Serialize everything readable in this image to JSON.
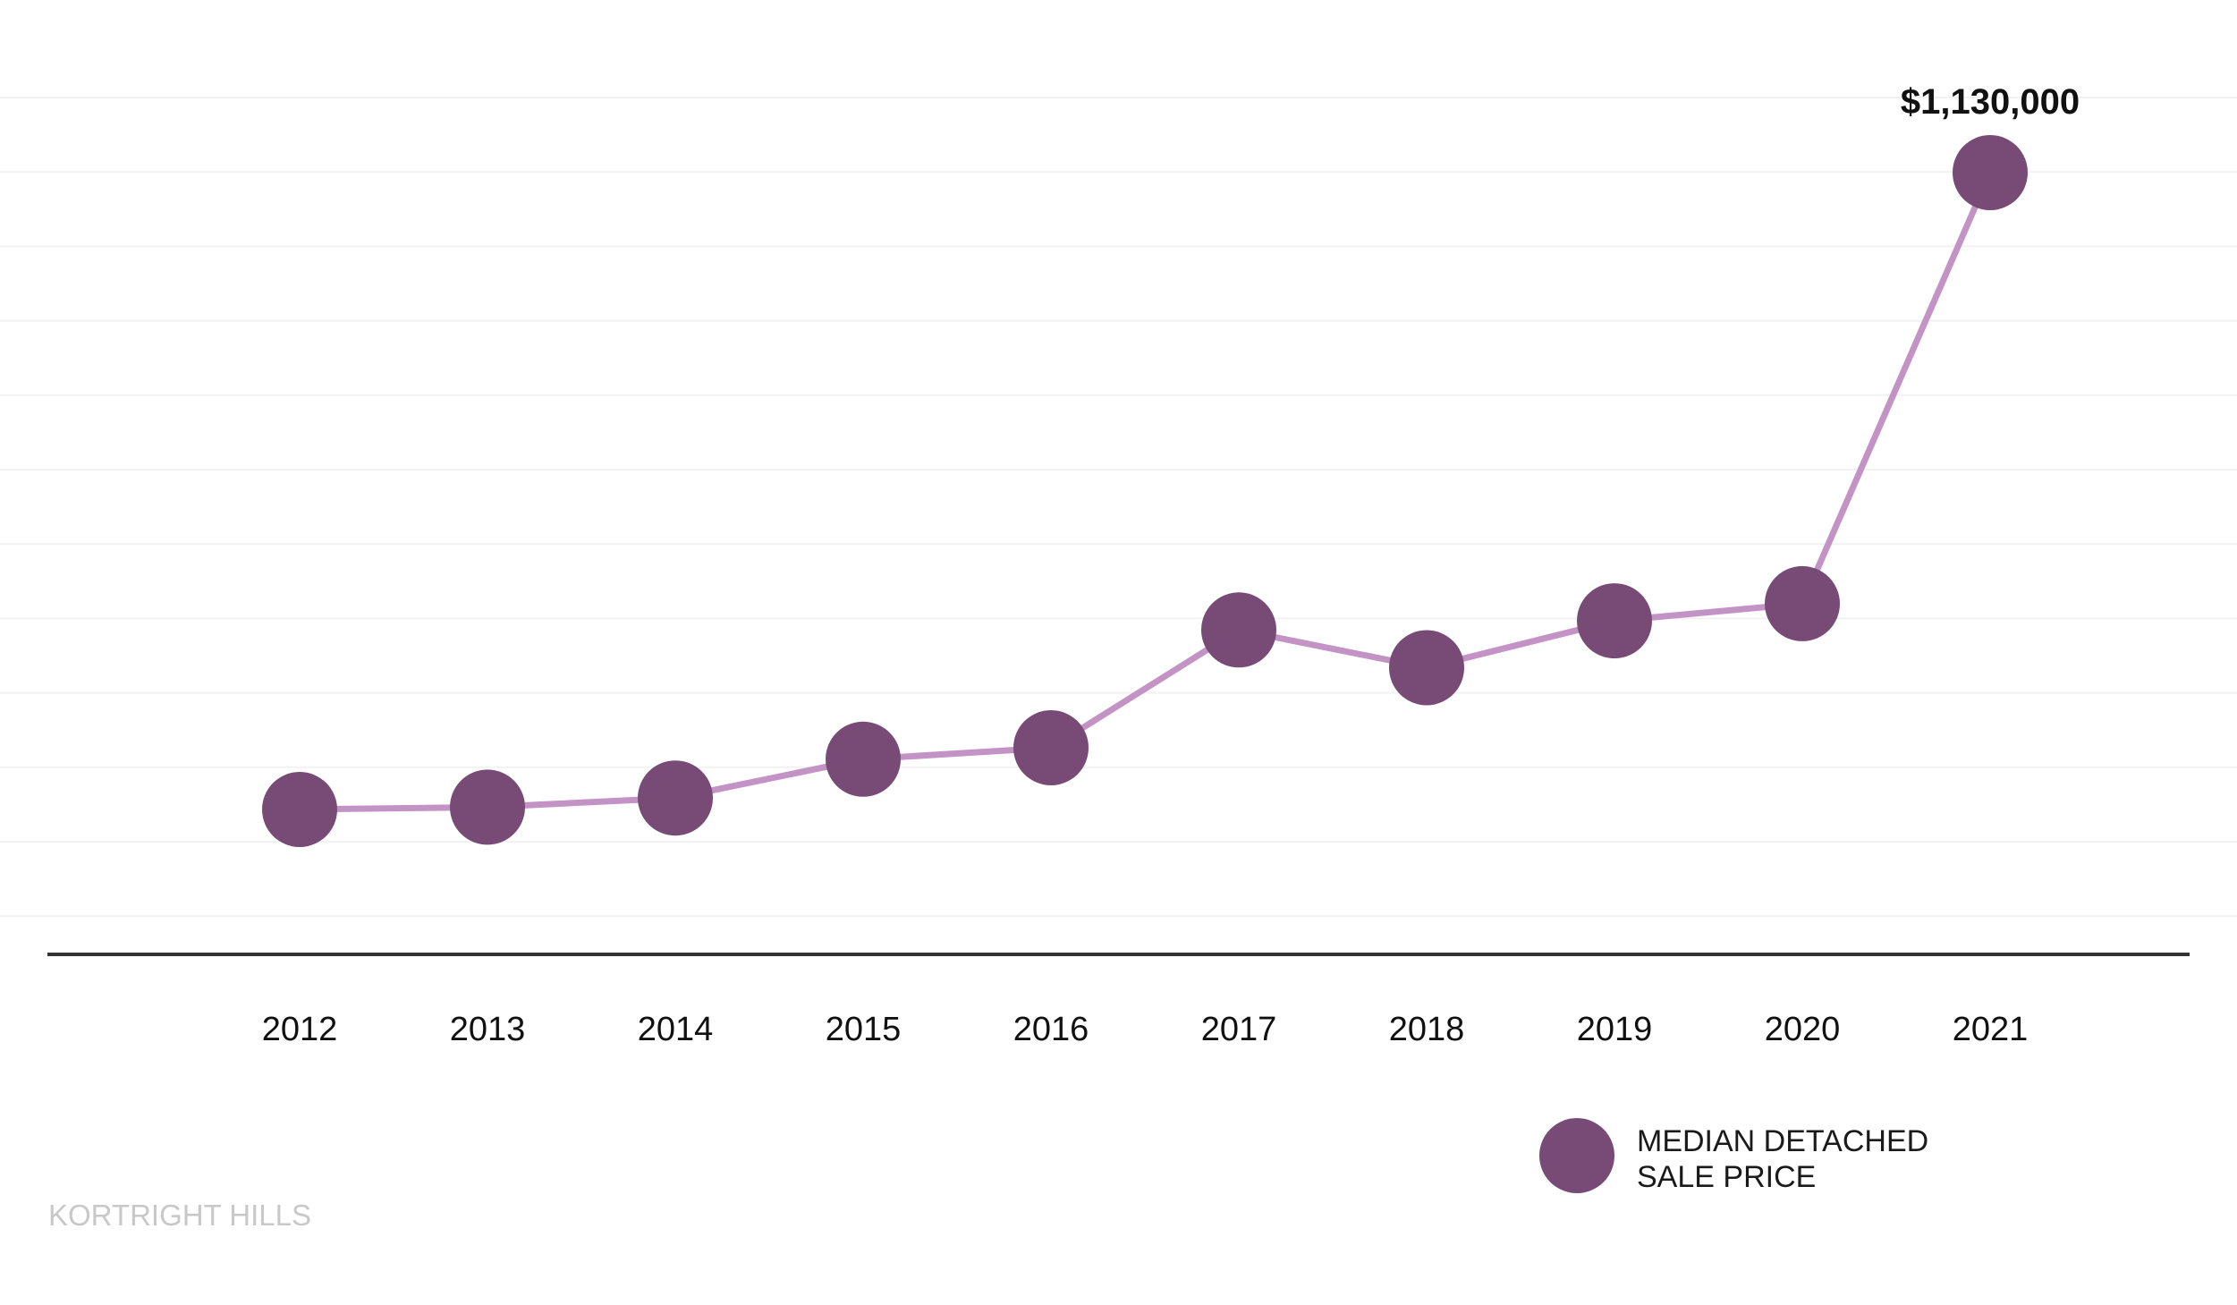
{
  "chart_data": {
    "type": "line",
    "x": [
      "2012",
      "2013",
      "2014",
      "2015",
      "2016",
      "2017",
      "2018",
      "2019",
      "2020",
      "2021"
    ],
    "series": [
      {
        "name": "MEDIAN DETACHED SALE PRICE",
        "values": [
          573000,
          575000,
          583000,
          617000,
          627000,
          730000,
          697000,
          738000,
          753000,
          1130000
        ]
      }
    ],
    "annotations": [
      {
        "x": "2021",
        "text": "$1,130,000"
      }
    ],
    "ylim": [
      300000,
      1130000
    ],
    "grid": true,
    "legend": {
      "placement": "bottom-right",
      "label_lines": [
        "MEDIAN DETACHED",
        "SALE PRICE"
      ]
    },
    "colors": {
      "line": "#c393c6",
      "marker": "#774b76",
      "axis": "#333333",
      "grid": "#f2f2f2",
      "text": "#111111",
      "watermark": "#c8c8c8"
    }
  },
  "watermark": "KORTRIGHT HILLS"
}
